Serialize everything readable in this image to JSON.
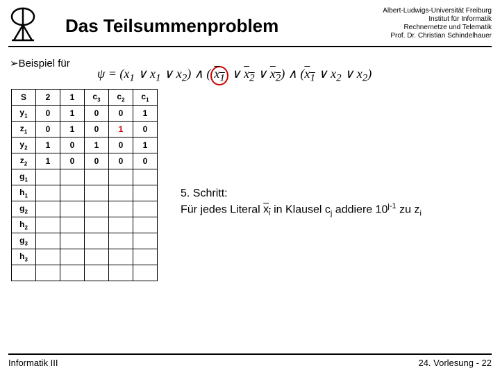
{
  "header": {
    "title": "Das Teilsummenproblem",
    "affiliation": {
      "l1": "Albert-Ludwigs-Universität Freiburg",
      "l2": "Institut für Informatik",
      "l3": "Rechnernetze und Telematik",
      "l4": "Prof. Dr. Christian Schindelhauer"
    }
  },
  "example_label": "➢Beispiel für",
  "formula": {
    "psi": "ψ",
    "eq": " = (",
    "x1": "x",
    "s1": "1",
    "or": " ∨ ",
    "and": ") ∧ (",
    "close": ")",
    "x2": "x",
    "s2": "2"
  },
  "table": {
    "headers": [
      "S",
      "2",
      "1",
      "c3",
      "c2",
      "c1"
    ],
    "rows": [
      {
        "label": "y1",
        "cells": [
          "0",
          "1",
          "0",
          "0",
          "1"
        ]
      },
      {
        "label": "z1",
        "cells": [
          "0",
          "1",
          "0",
          "1",
          "0"
        ],
        "red_cols": [
          3
        ]
      },
      {
        "label": "y2",
        "cells": [
          "1",
          "0",
          "1",
          "0",
          "1"
        ]
      },
      {
        "label": "z2",
        "cells": [
          "1",
          "0",
          "0",
          "0",
          "0"
        ]
      },
      {
        "label": "g1",
        "cells": [
          "",
          "",
          "",
          "",
          ""
        ]
      },
      {
        "label": "h1",
        "cells": [
          "",
          "",
          "",
          "",
          ""
        ]
      },
      {
        "label": "g2",
        "cells": [
          "",
          "",
          "",
          "",
          ""
        ]
      },
      {
        "label": "h2",
        "cells": [
          "",
          "",
          "",
          "",
          ""
        ]
      },
      {
        "label": "g3",
        "cells": [
          "",
          "",
          "",
          "",
          ""
        ]
      },
      {
        "label": "h3",
        "cells": [
          "",
          "",
          "",
          "",
          ""
        ]
      },
      {
        "label": "",
        "cells": [
          "",
          "",
          "",
          "",
          ""
        ]
      }
    ]
  },
  "step": {
    "line1": "5. Schritt:",
    "line2a": "Für jedes Literal ",
    "line2b": " in Klausel c",
    "line2c": " addiere 10",
    "line2d": " zu z"
  },
  "footer": {
    "left": "Informatik III",
    "right": "24. Vorlesung - 22"
  },
  "colors": {
    "accent_red": "#cc0000",
    "text": "#000000",
    "bg": "#ffffff"
  }
}
